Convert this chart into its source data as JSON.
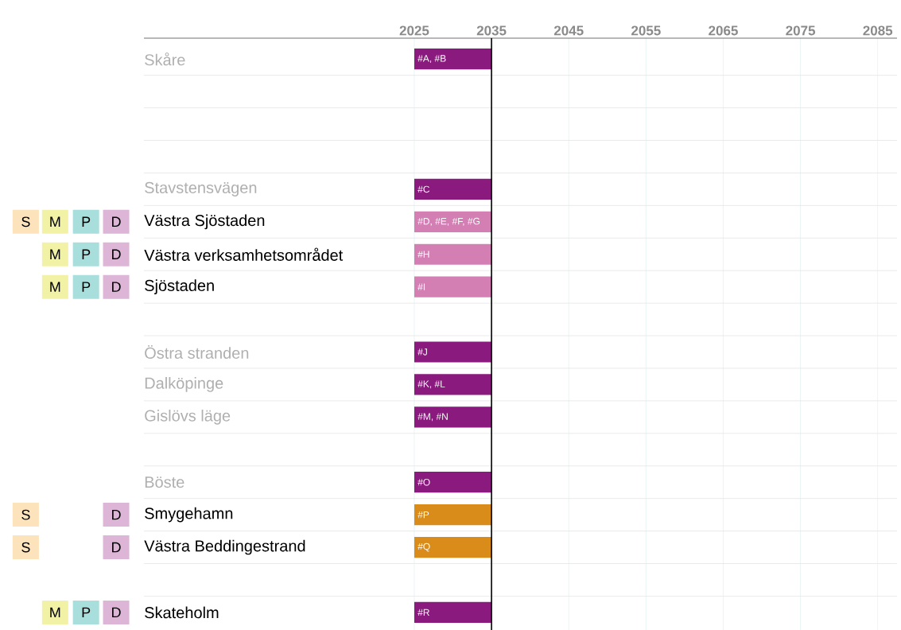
{
  "chart_data": {
    "type": "bar",
    "orientation": "horizontal",
    "categories": [
      "Skåre",
      null,
      null,
      null,
      "Stavstensvägen",
      "Västra Sjöstaden",
      "Västra verksamhetsområdet",
      "Sjöstaden",
      null,
      "Östra stranden",
      "Dalköpinge",
      "Gislövs läge",
      null,
      "Böste",
      "Smygehamn",
      "Västra Beddingestrand",
      null,
      "Skateholm"
    ],
    "values": [
      10,
      null,
      null,
      null,
      10,
      10,
      10,
      10,
      null,
      10,
      10,
      10,
      null,
      10,
      10,
      10,
      null,
      10
    ],
    "base": [
      2025,
      null,
      null,
      null,
      2025,
      2025,
      2025,
      2025,
      null,
      2025,
      2025,
      2025,
      null,
      2025,
      2025,
      2025,
      null,
      2025
    ],
    "colors": [
      "#8b1a7e",
      null,
      null,
      null,
      "#8b1a7e",
      "#d47fb4",
      "#d47fb4",
      "#d47fb4",
      null,
      "#8b1a7e",
      "#8b1a7e",
      "#8b1a7e",
      null,
      "#8b1a7e",
      "#d98c1a",
      "#d98c1a",
      null,
      "#8b1a7e"
    ],
    "value_labels": [
      "#A, #B",
      null,
      null,
      null,
      "#C",
      "#D, #E, #F, #G",
      "#H",
      "#I",
      null,
      "#J",
      "#K, #L",
      "#M, #N",
      null,
      "#O",
      "#P",
      "#Q",
      null,
      "#R"
    ],
    "xlim": [
      1990,
      2087.5
    ],
    "xticks": [
      2025,
      2035,
      2045,
      2055,
      2065,
      2075,
      2085
    ],
    "grid": true,
    "ref_lines": [
      {
        "axis": "x",
        "value": 2035
      }
    ],
    "annotations": [
      "S",
      "M",
      "P",
      "D",
      "M",
      "P",
      "D",
      "M",
      "P",
      "D",
      "S",
      "D",
      "S",
      "D",
      "M",
      "P",
      "D"
    ]
  }
}
